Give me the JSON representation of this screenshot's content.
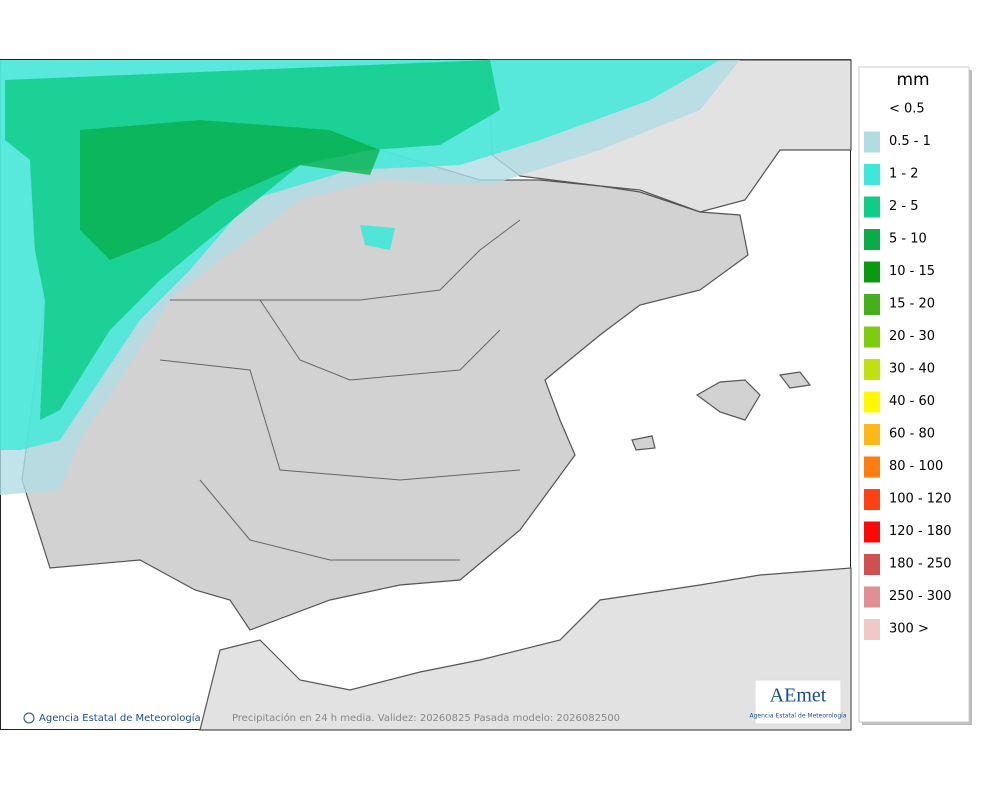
{
  "map": {
    "credit": "Agencia Estatal de Meteorología",
    "caption": "Precipitación en 24 h media. Validez: 20260825 Pasada modelo: 2026082500",
    "logo": {
      "name": "AEmet",
      "subtitle": "Agencia Estatal de Meteorología"
    }
  },
  "legend": {
    "title": "mm",
    "items": [
      {
        "label": "< 0.5"
      },
      {
        "label": "0.5 - 1",
        "color": "#b0dde4"
      },
      {
        "label": "1 - 2",
        "color": "#3ee8d8"
      },
      {
        "label": "2 - 5",
        "color": "#10cc8a"
      },
      {
        "label": "5 - 10",
        "color": "#08ac48"
      },
      {
        "label": "10 - 15",
        "color": "#0a9a10"
      },
      {
        "label": "15 - 20",
        "color": "#44b01a"
      },
      {
        "label": "20 - 30",
        "color": "#7ccc10"
      },
      {
        "label": "30 - 40",
        "color": "#c0e010"
      },
      {
        "label": "40 - 60",
        "color": "#fff800"
      },
      {
        "label": "60 - 80",
        "color": "#ffb818"
      },
      {
        "label": "80 - 100",
        "color": "#ff7c10"
      },
      {
        "label": "100 - 120",
        "color": "#ff4010"
      },
      {
        "label": "120 - 180",
        "color": "#ff0808"
      },
      {
        "label": "180 - 250",
        "color": "#d05050"
      },
      {
        "label": "250 - 300",
        "color": "#e09090"
      },
      {
        "label": "300 >",
        "color": "#f0c8c8"
      }
    ]
  }
}
